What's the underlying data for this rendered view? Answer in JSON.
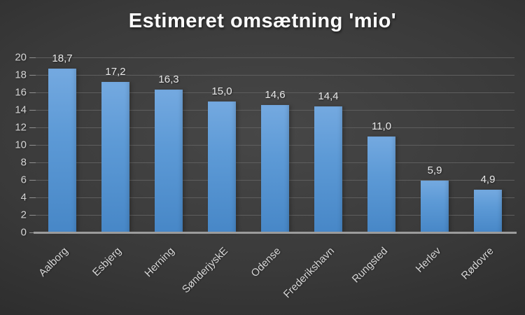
{
  "title": "Estimeret omsætning 'mio'",
  "chart_data": {
    "type": "bar",
    "title": "Estimeret omsætning 'mio'",
    "categories": [
      "Aalborg",
      "Esbjerg",
      "Herning",
      "SønderjyskE",
      "Odense",
      "Frederikshavn",
      "Rungsted",
      "Herlev",
      "Rødovre"
    ],
    "values": [
      18.7,
      17.2,
      16.3,
      15.0,
      14.6,
      14.4,
      11.0,
      5.9,
      4.9
    ],
    "value_labels": [
      "18,7",
      "17,2",
      "16,3",
      "15,0",
      "14,6",
      "14,4",
      "11,0",
      "5,9",
      "4,9"
    ],
    "xlabel": "",
    "ylabel": "",
    "ylim": [
      0,
      20
    ],
    "ytick_step": 2,
    "ytick_labels": [
      "0",
      "2",
      "4",
      "6",
      "8",
      "10",
      "12",
      "14",
      "16",
      "18",
      "20"
    ],
    "grid": true,
    "legend": false,
    "x_label_rotation_deg": -45,
    "colors": {
      "bar_top": "#74a9e0",
      "bar_bottom": "#4787c7",
      "background_center": "#474747",
      "background_edge": "#232323",
      "gridline": "#5e5e5e",
      "tick": "#8f8f8f",
      "axis_line": "#9c9c9c",
      "text": "#d6d6d6",
      "title": "#fdfdfd"
    }
  }
}
